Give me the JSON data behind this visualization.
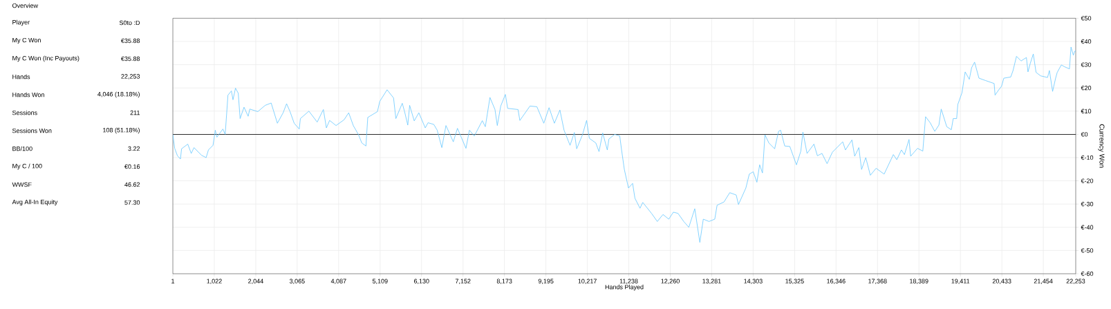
{
  "chart_data": [
    {
      "type": "other",
      "title": "Overview",
      "annotations": [
        "Player",
        "S0to :D",
        "My C Won",
        "€35.88",
        "My C Won (Inc Payouts)",
        "€35.88",
        "Hands",
        "22,253",
        "Hands Won",
        "4,046 (18.18%)",
        "Sessions",
        "211",
        "Sessions Won",
        "108 (51.18%)",
        "BB/100",
        "3.22",
        "My C / 100",
        "€0.16",
        "WWSF",
        "46.62",
        "Avg All-In Equity",
        "57.30"
      ]
    },
    {
      "type": "line",
      "xlabel": "Hands Played",
      "ylabel": "Currency Won",
      "color": "#66c8ff",
      "grid": true,
      "xlim": [
        1,
        22253
      ],
      "ylim": [
        -60,
        50
      ],
      "xticks": [
        1,
        {
          "value": 1022,
          "label": "1,022"
        },
        {
          "value": 2044,
          "label": "2,044"
        },
        {
          "value": 3065,
          "label": "3,065"
        },
        {
          "value": 4087,
          "label": "4,087"
        },
        {
          "value": 5109,
          "label": "5,109"
        },
        {
          "value": 6130,
          "label": "6,130"
        },
        {
          "value": 7152,
          "label": "7,152"
        },
        {
          "value": 8173,
          "label": "8,173"
        },
        {
          "value": 9195,
          "label": "9,195"
        },
        {
          "value": 10217,
          "label": "10,217"
        },
        {
          "value": 11238,
          "label": "11,238"
        },
        {
          "value": 12260,
          "label": "12,260"
        },
        {
          "value": 13281,
          "label": "13,281"
        },
        {
          "value": 14303,
          "label": "14,303"
        },
        {
          "value": 15325,
          "label": "15,325"
        },
        {
          "value": 16346,
          "label": "16,346"
        },
        {
          "value": 17368,
          "label": "17,368"
        },
        {
          "value": 18389,
          "label": "18,389"
        },
        {
          "value": 19411,
          "label": "19,411"
        },
        {
          "value": 20433,
          "label": "20,433"
        },
        {
          "value": 21454,
          "label": "21,454"
        },
        {
          "value": 22253,
          "label": "22,253"
        }
      ],
      "yticks": [
        {
          "value": -60,
          "label": "€-60"
        },
        {
          "value": -50,
          "label": "€-50"
        },
        {
          "value": -40,
          "label": "€-40"
        },
        {
          "value": -30,
          "label": "€-30"
        },
        {
          "value": -20,
          "label": "€-20"
        },
        {
          "value": -10,
          "label": "€-10"
        },
        {
          "value": 0,
          "label": "€0"
        },
        {
          "value": 10,
          "label": "€10"
        },
        {
          "value": 20,
          "label": "€20"
        },
        {
          "value": 30,
          "label": "€30"
        },
        {
          "value": 40,
          "label": "€40"
        },
        {
          "value": 50,
          "label": "€50"
        }
      ],
      "ref_lines": [
        {
          "axis": "y",
          "value": 0,
          "color": "#000000"
        }
      ],
      "x": [
        1,
        46,
        114,
        188,
        216,
        369,
        454,
        522,
        708,
        821,
        878,
        991,
        1047,
        1087,
        1234,
        1291,
        1359,
        1444,
        1483,
        1545,
        1613,
        1659,
        1755,
        1857,
        1897,
        2095,
        2277,
        2424,
        2577,
        2719,
        2804,
        2889,
        2991,
        3116,
        3144,
        3354,
        3558,
        3711,
        3785,
        3864,
        4023,
        4221,
        4335,
        4448,
        4578,
        4658,
        4760,
        4805,
        5043,
        5100,
        5281,
        5440,
        5497,
        5655,
        5712,
        5791,
        5837,
        5950,
        6063,
        6222,
        6290,
        6431,
        6516,
        6630,
        6732,
        6913,
        7015,
        7225,
        7310,
        7430,
        7628,
        7702,
        7816,
        7940,
        7997,
        8082,
        8196,
        8252,
        8508,
        8553,
        8803,
        8973,
        9143,
        9273,
        9404,
        9540,
        9642,
        9790,
        9897,
        9954,
        10096,
        10198,
        10266,
        10425,
        10504,
        10595,
        10708,
        10748,
        10890,
        11015,
        11060,
        11128,
        11230,
        11332,
        11389,
        11514,
        11582,
        11798,
        11940,
        12081,
        12223,
        12336,
        12450,
        12592,
        12717,
        12864,
        12989,
        13074,
        13215,
        13357,
        13414,
        13584,
        13726,
        13885,
        13941,
        14123,
        14208,
        14305,
        14395,
        14463,
        14532,
        14594,
        14691,
        14833,
        14929,
        14979,
        15081,
        15206,
        15370,
        15478,
        15529,
        15631,
        15801,
        15886,
        15999,
        16125,
        16255,
        16510,
        16578,
        16737,
        16805,
        16907,
        16975,
        17078,
        17191,
        17333,
        17531,
        17758,
        17843,
        17957,
        18031,
        18144,
        18184,
        18354,
        18484,
        18552,
        18666,
        18779,
        18881,
        18938,
        19074,
        19187,
        19233,
        19318,
        19347,
        19449,
        19528,
        19630,
        19687,
        19760,
        19868,
        20027,
        20242,
        20265,
        20356,
        20424,
        20481,
        20651,
        20708,
        20793,
        20906,
        21037,
        21076,
        21133,
        21207,
        21275,
        21388,
        21558,
        21604,
        21683,
        21757,
        21797,
        21899,
        21967,
        22098,
        22137,
        22194,
        22228,
        22253
      ],
      "values": [
        0,
        -6.0,
        -9.2,
        -10.6,
        -6.2,
        -4.2,
        -8.2,
        -5.7,
        -9.0,
        -10.0,
        -6.7,
        -4.7,
        1.8,
        -1.2,
        2.3,
        0,
        16.9,
        18.7,
        14.9,
        19.9,
        17.7,
        6.8,
        11.7,
        7.8,
        10.9,
        9.8,
        12.5,
        13.5,
        4.8,
        9.3,
        13.2,
        9.8,
        4.8,
        2.3,
        6.8,
        10.0,
        5.3,
        10.7,
        2.8,
        6.0,
        3.8,
        6.3,
        9.3,
        3.8,
        -0.2,
        -3.7,
        -5.0,
        7.3,
        9.8,
        14.2,
        19.2,
        15.7,
        6.8,
        13.4,
        9.8,
        4.0,
        12.5,
        5.8,
        9.3,
        2.8,
        5.0,
        4.3,
        1.8,
        -5.7,
        3.8,
        -3.2,
        2.6,
        -6.0,
        1.8,
        -0.7,
        5.9,
        3.3,
        15.9,
        10.7,
        3.8,
        12.2,
        17.2,
        11.2,
        10.7,
        6.0,
        12.2,
        11.9,
        4.8,
        11.5,
        4.8,
        10.5,
        1.8,
        -4.7,
        0.8,
        -6.2,
        -0.2,
        6.0,
        -1.7,
        -3.7,
        -7.4,
        0.6,
        -6.7,
        -2.0,
        0,
        -0.7,
        -6.7,
        -15.1,
        -23.1,
        -21.1,
        -27.5,
        -31.8,
        -29.3,
        -34.0,
        -37.5,
        -34.5,
        -36.5,
        -33.5,
        -34.0,
        -37.5,
        -40.0,
        -32.0,
        -46.5,
        -36.5,
        -37.5,
        -36.5,
        -30.5,
        -29.1,
        -25.1,
        -26.1,
        -30.2,
        -23.1,
        -17.1,
        -16.1,
        -20.6,
        -13.1,
        -16.6,
        -0.2,
        -3.7,
        -6.2,
        1.3,
        1.8,
        -5.0,
        -5.2,
        -13.1,
        -7.2,
        1.0,
        -8.2,
        -4.2,
        -9.2,
        -8.2,
        -12.6,
        -7.7,
        -3.2,
        -6.7,
        -2.4,
        -9.4,
        -5.7,
        -15.1,
        -10.0,
        -17.6,
        -14.6,
        -17.1,
        -8.7,
        -10.9,
        -6.7,
        -8.7,
        -2.2,
        -9.4,
        -6.0,
        -7.2,
        7.6,
        5.0,
        1.3,
        4.0,
        10.9,
        3.3,
        2.0,
        6.8,
        6.8,
        12.9,
        17.9,
        26.9,
        23.7,
        28.7,
        31.1,
        24.2,
        23.2,
        21.9,
        16.9,
        19.2,
        20.7,
        24.2,
        24.7,
        27.5,
        33.6,
        31.6,
        33.1,
        26.9,
        30.6,
        34.6,
        26.7,
        25.2,
        24.5,
        27.5,
        18.5,
        24.2,
        26.7,
        29.9,
        29.2,
        28.2,
        37.6,
        34.1,
        35.8,
        35.9
      ]
    }
  ]
}
